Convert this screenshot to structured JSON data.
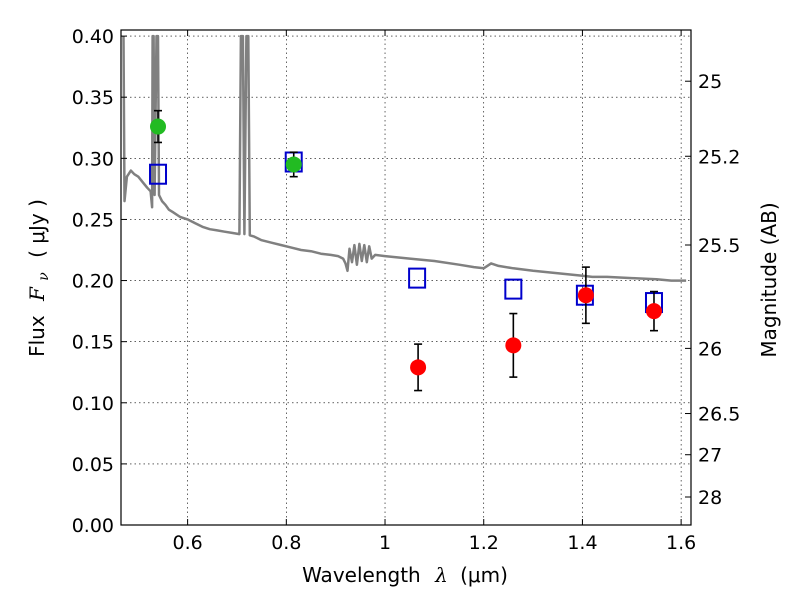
{
  "chart_data": {
    "type": "scatter",
    "title": "",
    "xlabel_text": "Wavelength",
    "xlabel_symbol": "λ",
    "xlabel_unit": "(μm)",
    "ylabel_text": "Flux",
    "ylabel_symbol": "F",
    "ylabel_subscript": "ν",
    "ylabel_unit": "( μJy )",
    "y2label": "Magnitude (AB)",
    "xlim": [
      0.465,
      1.62
    ],
    "ylim": [
      0.0,
      0.405
    ],
    "grid": true,
    "x_ticks": [
      {
        "value": 0.6,
        "label": "0.6"
      },
      {
        "value": 0.8,
        "label": "0.8"
      },
      {
        "value": 1.0,
        "label": "1"
      },
      {
        "value": 1.2,
        "label": "1.2"
      },
      {
        "value": 1.4,
        "label": "1.4"
      },
      {
        "value": 1.6,
        "label": "1.6"
      }
    ],
    "y_ticks": [
      {
        "value": 0.0,
        "label": "0.00"
      },
      {
        "value": 0.05,
        "label": "0.05"
      },
      {
        "value": 0.1,
        "label": "0.10"
      },
      {
        "value": 0.15,
        "label": "0.15"
      },
      {
        "value": 0.2,
        "label": "0.20"
      },
      {
        "value": 0.25,
        "label": "0.25"
      },
      {
        "value": 0.3,
        "label": "0.30"
      },
      {
        "value": 0.35,
        "label": "0.35"
      },
      {
        "value": 0.4,
        "label": "0.40"
      }
    ],
    "y2_ticks": [
      {
        "flux": 0.3631,
        "label": "25"
      },
      {
        "flux": 0.3017,
        "label": "25.2"
      },
      {
        "flux": 0.2291,
        "label": "25.5"
      },
      {
        "flux": 0.1445,
        "label": "26"
      },
      {
        "flux": 0.0912,
        "label": "26.5"
      },
      {
        "flux": 0.0575,
        "label": "27"
      },
      {
        "flux": 0.0229,
        "label": "28"
      }
    ],
    "series": [
      {
        "name": "model-spectrum",
        "kind": "line",
        "color": "#808080",
        "points": [
          [
            0.47,
            0.4
          ],
          [
            0.472,
            0.265
          ],
          [
            0.477,
            0.285
          ],
          [
            0.485,
            0.29
          ],
          [
            0.492,
            0.287
          ],
          [
            0.5,
            0.285
          ],
          [
            0.51,
            0.28
          ],
          [
            0.518,
            0.276
          ],
          [
            0.525,
            0.273
          ],
          [
            0.528,
            0.26
          ],
          [
            0.529,
            0.4
          ],
          [
            0.531,
            0.4
          ],
          [
            0.533,
            0.27
          ],
          [
            0.537,
            0.4
          ],
          [
            0.54,
            0.4
          ],
          [
            0.542,
            0.27
          ],
          [
            0.548,
            0.265
          ],
          [
            0.555,
            0.262
          ],
          [
            0.562,
            0.258
          ],
          [
            0.57,
            0.256
          ],
          [
            0.585,
            0.252
          ],
          [
            0.6,
            0.25
          ],
          [
            0.615,
            0.247
          ],
          [
            0.63,
            0.244
          ],
          [
            0.645,
            0.242
          ],
          [
            0.66,
            0.241
          ],
          [
            0.675,
            0.24
          ],
          [
            0.69,
            0.239
          ],
          [
            0.705,
            0.238
          ],
          [
            0.708,
            0.4
          ],
          [
            0.712,
            0.4
          ],
          [
            0.715,
            0.238
          ],
          [
            0.719,
            0.4
          ],
          [
            0.723,
            0.4
          ],
          [
            0.726,
            0.237
          ],
          [
            0.735,
            0.236
          ],
          [
            0.75,
            0.233
          ],
          [
            0.77,
            0.231
          ],
          [
            0.79,
            0.229
          ],
          [
            0.81,
            0.227
          ],
          [
            0.83,
            0.225
          ],
          [
            0.85,
            0.224
          ],
          [
            0.87,
            0.222
          ],
          [
            0.89,
            0.221
          ],
          [
            0.905,
            0.22
          ],
          [
            0.915,
            0.218
          ],
          [
            0.92,
            0.214
          ],
          [
            0.924,
            0.208
          ],
          [
            0.928,
            0.226
          ],
          [
            0.933,
            0.215
          ],
          [
            0.938,
            0.229
          ],
          [
            0.943,
            0.213
          ],
          [
            0.948,
            0.23
          ],
          [
            0.953,
            0.216
          ],
          [
            0.958,
            0.229
          ],
          [
            0.963,
            0.215
          ],
          [
            0.968,
            0.228
          ],
          [
            0.973,
            0.218
          ],
          [
            0.98,
            0.221
          ],
          [
            1.0,
            0.22
          ],
          [
            1.05,
            0.218
          ],
          [
            1.1,
            0.216
          ],
          [
            1.15,
            0.213
          ],
          [
            1.18,
            0.211
          ],
          [
            1.2,
            0.21
          ],
          [
            1.215,
            0.214
          ],
          [
            1.23,
            0.212
          ],
          [
            1.26,
            0.21
          ],
          [
            1.3,
            0.208
          ],
          [
            1.35,
            0.206
          ],
          [
            1.4,
            0.204
          ],
          [
            1.42,
            0.203
          ],
          [
            1.45,
            0.203
          ],
          [
            1.5,
            0.202
          ],
          [
            1.55,
            0.201
          ],
          [
            1.58,
            0.2
          ],
          [
            1.61,
            0.2
          ]
        ]
      },
      {
        "name": "model-photometry",
        "kind": "open-square",
        "color": "#0000cc",
        "points": [
          [
            0.54,
            0.287
          ],
          [
            0.815,
            0.297
          ],
          [
            1.065,
            0.202
          ],
          [
            1.26,
            0.193
          ],
          [
            1.405,
            0.188
          ],
          [
            1.545,
            0.182
          ]
        ]
      },
      {
        "name": "hst-optical",
        "kind": "filled-circle",
        "color": "#22bb22",
        "points": [
          {
            "x": 0.54,
            "y": 0.326,
            "err": 0.013
          },
          {
            "x": 0.815,
            "y": 0.295,
            "err": 0.01
          }
        ]
      },
      {
        "name": "hst-nir",
        "kind": "filled-circle",
        "color": "#ff0000",
        "points": [
          {
            "x": 1.067,
            "y": 0.129,
            "err": 0.019
          },
          {
            "x": 1.26,
            "y": 0.147,
            "err": 0.026
          },
          {
            "x": 1.407,
            "y": 0.188,
            "err": 0.023
          },
          {
            "x": 1.545,
            "y": 0.175,
            "err": 0.016
          }
        ]
      }
    ]
  }
}
